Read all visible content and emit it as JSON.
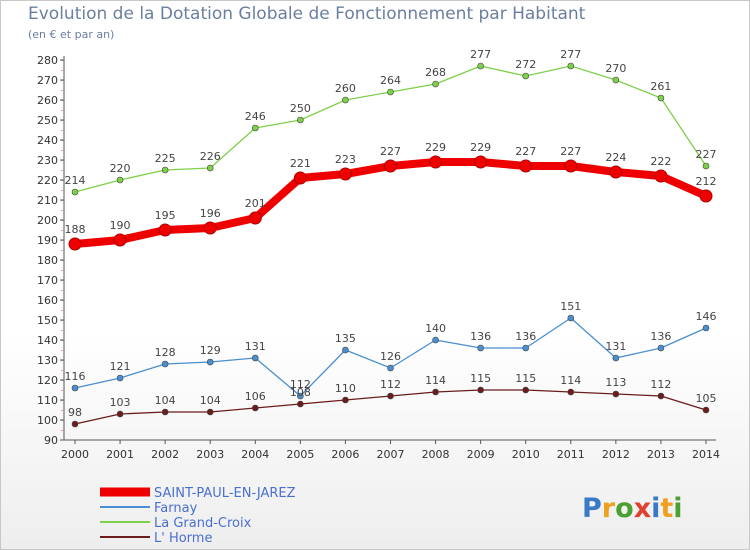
{
  "header": {
    "title": "Evolution de la Dotation Globale de Fonctionnement par Habitant",
    "subtitle": "(en € et par an)"
  },
  "logo": {
    "text": "Proxiti"
  },
  "chart_data": {
    "type": "line",
    "title": "Evolution de la Dotation Globale de Fonctionnement par Habitant",
    "subtitle": "(en € et par an)",
    "x": [
      2000,
      2001,
      2002,
      2003,
      2004,
      2005,
      2006,
      2007,
      2008,
      2009,
      2010,
      2011,
      2012,
      2013,
      2014
    ],
    "ylim": [
      90,
      280
    ],
    "ytick_step": 10,
    "grid": false,
    "legend_position": "bottom-left",
    "series": [
      {
        "name": "SAINT-PAUL-EN-JAREZ",
        "color": "#ee0000",
        "values": [
          188,
          190,
          195,
          196,
          201,
          221,
          223,
          227,
          229,
          229,
          227,
          227,
          224,
          222,
          212
        ]
      },
      {
        "name": "Farnay",
        "color": "#4a8fd0",
        "values": [
          116,
          121,
          128,
          129,
          131,
          112,
          135,
          126,
          140,
          136,
          136,
          151,
          131,
          136,
          146
        ]
      },
      {
        "name": "La Grand-Croix",
        "color": "#7ed04a",
        "values": [
          214,
          220,
          225,
          226,
          246,
          250,
          260,
          264,
          268,
          277,
          272,
          277,
          270,
          261,
          227
        ]
      },
      {
        "name": "L' Horme",
        "color": "#6b1c1c",
        "values": [
          98,
          103,
          104,
          104,
          106,
          108,
          110,
          112,
          114,
          115,
          115,
          114,
          113,
          112,
          105
        ]
      }
    ]
  }
}
